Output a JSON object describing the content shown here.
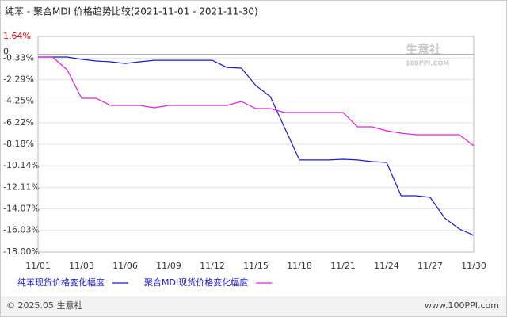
{
  "chart_data": {
    "type": "line",
    "title": "纯苯 - 聚合MDI 价格趋势比较(2021-11-01 - 2021-11-30)",
    "categories": [
      "11/01",
      null,
      null,
      "11/03",
      null,
      null,
      "11/06",
      null,
      null,
      "11/09",
      null,
      null,
      "11/12",
      null,
      null,
      "11/15",
      null,
      null,
      "11/18",
      null,
      null,
      "11/21",
      null,
      null,
      "11/24",
      null,
      null,
      "11/27",
      null,
      null,
      "11/30"
    ],
    "series": [
      {
        "name": "纯苯现货价格变化幅度",
        "color": "#1a1acc",
        "values": [
          -0.24,
          -0.24,
          -0.24,
          -0.45,
          -0.6,
          -0.67,
          -0.82,
          -0.67,
          -0.53,
          -0.53,
          -0.53,
          -0.53,
          -0.53,
          -1.18,
          -1.25,
          -2.84,
          -3.85,
          -6.74,
          -9.62,
          -9.62,
          -9.62,
          -9.55,
          -9.62,
          -9.77,
          -9.84,
          -12.87,
          -12.87,
          -13.02,
          -14.9,
          -15.9,
          -16.48
        ]
      },
      {
        "name": "聚合MDI现货价格变化幅度",
        "color": "#e020e0",
        "values": [
          -0.24,
          -0.24,
          -1.39,
          -3.99,
          -3.99,
          -4.64,
          -4.64,
          -4.64,
          -4.86,
          -4.64,
          -4.64,
          -4.64,
          -4.64,
          -4.64,
          -4.28,
          -4.93,
          -4.93,
          -5.29,
          -5.29,
          -5.29,
          -5.29,
          -5.29,
          -6.59,
          -6.59,
          -6.95,
          -7.17,
          -7.31,
          -7.31,
          -7.31,
          -7.31,
          -8.32
        ]
      }
    ],
    "ylim": [
      -18.0,
      1.64
    ],
    "yticks": [
      {
        "value": 1.64,
        "label": "1.64%"
      },
      0,
      {
        "value": -0.33,
        "label": "-0.33%"
      },
      {
        "value": -2.29,
        "label": "-2.29%"
      },
      {
        "value": -4.25,
        "label": "-4.25%"
      },
      {
        "value": -6.22,
        "label": "-6.22%"
      },
      {
        "value": -8.18,
        "label": "-8.18%"
      },
      {
        "value": -10.14,
        "label": "-10.14%"
      },
      {
        "value": -12.11,
        "label": "-12.11%"
      },
      {
        "value": -14.07,
        "label": "-14.07%"
      },
      {
        "value": -16.03,
        "label": "-16.03%"
      },
      {
        "value": -18.0,
        "label": "-18.00%"
      }
    ],
    "grid": true,
    "watermark": [
      "生意社",
      "100PPI.COM"
    ],
    "footer": {
      "left": "© 2025.05 生意社",
      "right": "www.100PPI.com"
    }
  }
}
